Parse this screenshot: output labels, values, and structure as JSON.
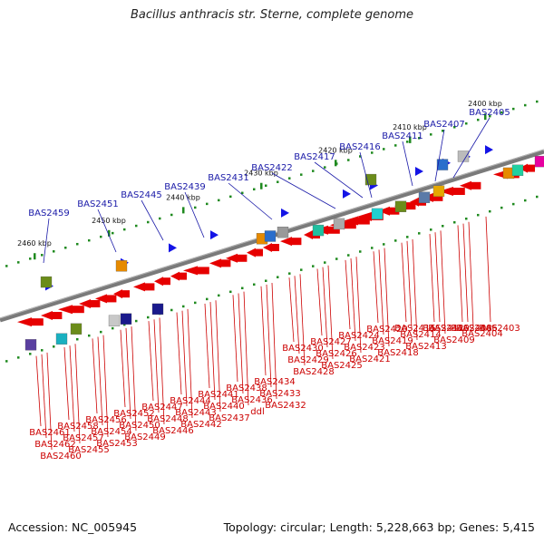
{
  "title": "Bacillus anthracis str. Sterne, complete genome",
  "footer": {
    "accession": "Accession: NC_005945",
    "topology": "Topology: circular; Length: 5,228,663 bp; Genes: 5,415"
  },
  "colors": {
    "forward_arrow": "#1414e6",
    "reverse_arrow": "#e60000",
    "top_label": "#1a1aa8",
    "bottom_label": "#cc0000",
    "backbone": "#808080"
  },
  "kbp_ticks": [
    "2460 kbp",
    "2450 kbp",
    "2440 kbp",
    "2430 kbp",
    "2420 kbp",
    "2410 kbp",
    "2400 kbp"
  ],
  "top_genes": [
    "BAS2459",
    "BAS2451",
    "BAS2445",
    "BAS2439",
    "BAS2431",
    "BAS2422",
    "BAS2417",
    "BAS2416",
    "BAS2411",
    "BAS2407",
    "BAS2405"
  ],
  "bottom_genes": [
    "BAS2461",
    "BAS2462",
    "BAS2460",
    "BAS2458",
    "BAS2457",
    "BAS2455",
    "BAS2456",
    "BAS2454",
    "BAS2453",
    "BAS2452",
    "BAS2450",
    "BAS2449",
    "BAS2447",
    "BAS2448",
    "BAS2446",
    "BAS2444",
    "BAS2443",
    "BAS2442",
    "BAS2441",
    "BAS2440",
    "BAS2437",
    "BAS2438",
    "BAS2436",
    "ddl",
    "BAS2434",
    "BAS2433",
    "BAS2432",
    "BAS2430",
    "BAS2429",
    "BAS2428",
    "BAS2427",
    "BAS2426",
    "BAS2425",
    "BAS2424",
    "BAS2423",
    "BAS2421",
    "BAS2420",
    "BAS2419",
    "BAS2418",
    "BAS2415",
    "BAS2414",
    "BAS2413",
    "BAS2412",
    "BAS2410",
    "BAS2409",
    "BAS2408",
    "BAS2406",
    "BAS2404",
    "BAS2403"
  ]
}
